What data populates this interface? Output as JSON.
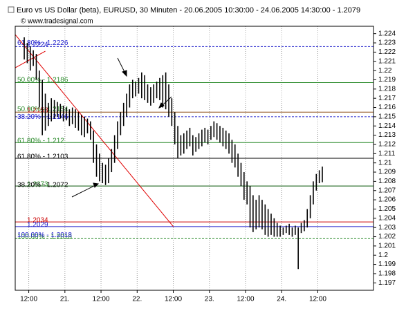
{
  "chart_data": {
    "type": "range-bar",
    "title": "Euro vs US Dollar (beta), EURUSD, 30 Minuten - 20.06.2005 10:30:00 - 24.06.2005 14:30:00 - 1.2079",
    "watermark": "© www.tradesignal.com",
    "bar_color": "#000000",
    "x": [
      0,
      1,
      2,
      3,
      4,
      5,
      6,
      7,
      8,
      9,
      10,
      11,
      12,
      13,
      14,
      15,
      16,
      17,
      18,
      19,
      20,
      21,
      22,
      23,
      24,
      25,
      26,
      27,
      28,
      29,
      30,
      31,
      32,
      33,
      34,
      35,
      36,
      37,
      38,
      39,
      40,
      41,
      42,
      43,
      44,
      45,
      46,
      47,
      48,
      49,
      50,
      51,
      52,
      53,
      54,
      55,
      56,
      57,
      58,
      59,
      60,
      61,
      62,
      63,
      64,
      65,
      66,
      67,
      68,
      69,
      70,
      71,
      72,
      73,
      74,
      75,
      76,
      77,
      78,
      79,
      80,
      81,
      82,
      83,
      84,
      85,
      86,
      87,
      88,
      89,
      90,
      91,
      92,
      93,
      94,
      95,
      96,
      97,
      98,
      99
    ],
    "high": [
      1.2236,
      1.223,
      1.2226,
      1.2222,
      1.2218,
      1.22,
      1.219,
      1.2175,
      1.2165,
      1.217,
      1.2168,
      1.2166,
      1.2164,
      1.2162,
      1.216,
      1.2158,
      1.216,
      1.2158,
      1.2155,
      1.2152,
      1.215,
      1.2148,
      1.2145,
      1.2135,
      1.212,
      1.211,
      1.21,
      1.2098,
      1.2105,
      1.2115,
      1.213,
      1.2145,
      1.2155,
      1.2165,
      1.2175,
      1.2185,
      1.219,
      1.2188,
      1.2192,
      1.2198,
      1.2195,
      1.2185,
      1.2182,
      1.2185,
      1.2188,
      1.2192,
      1.2195,
      1.2198,
      1.2185,
      1.217,
      1.2155,
      1.214,
      1.213,
      1.2132,
      1.2135,
      1.2138,
      1.213,
      1.2128,
      1.2132,
      1.2136,
      1.2138,
      1.2136,
      1.214,
      1.2145,
      1.2143,
      1.214,
      1.2138,
      1.2135,
      1.2132,
      1.2125,
      1.212,
      1.211,
      1.21,
      1.209,
      1.208,
      1.2075,
      1.2065,
      1.206,
      1.2065,
      1.206,
      1.2055,
      1.205,
      1.2045,
      1.204,
      1.2035,
      1.2032,
      1.203,
      1.2032,
      1.2034,
      1.203,
      1.2032,
      1.203,
      1.2035,
      1.2038,
      1.205,
      1.2065,
      1.208,
      1.2088,
      1.2092,
      1.2096
    ],
    "low": [
      1.2212,
      1.2208,
      1.22,
      1.2205,
      1.219,
      1.216,
      1.213,
      1.2135,
      1.214,
      1.2145,
      1.2148,
      1.215,
      1.2148,
      1.2145,
      1.2146,
      1.214,
      1.2142,
      1.2138,
      1.2135,
      1.213,
      1.2128,
      1.2132,
      1.2125,
      1.21,
      1.2085,
      1.208,
      1.2078,
      1.2076,
      1.2078,
      1.209,
      1.21,
      1.2115,
      1.213,
      1.214,
      1.215,
      1.216,
      1.217,
      1.2172,
      1.2175,
      1.217,
      1.2168,
      1.2165,
      1.2162,
      1.2165,
      1.217,
      1.2168,
      1.216,
      1.2158,
      1.215,
      1.214,
      1.212,
      1.2105,
      1.2108,
      1.211,
      1.2115,
      1.2118,
      1.2108,
      1.2112,
      1.2115,
      1.2118,
      1.2122,
      1.212,
      1.2125,
      1.2128,
      1.2125,
      1.2122,
      1.2118,
      1.2115,
      1.211,
      1.21,
      1.2095,
      1.2085,
      1.2075,
      1.206,
      1.2055,
      1.203,
      1.2025,
      1.2028,
      1.203,
      1.2028,
      1.2022,
      1.202,
      1.2022,
      1.202,
      1.202,
      1.202,
      1.2022,
      1.2024,
      1.2022,
      1.202,
      1.2022,
      1.1985,
      1.2024,
      1.2026,
      1.203,
      1.204,
      1.2055,
      1.207,
      1.2078,
      1.2079
    ],
    "xlim": [
      -3,
      116
    ],
    "xticks": [
      {
        "value": 1.5,
        "label": "12:00"
      },
      {
        "value": 13.5,
        "label": "21."
      },
      {
        "value": 25.5,
        "label": "12:00"
      },
      {
        "value": 37.5,
        "label": "22."
      },
      {
        "value": 49.5,
        "label": "12:00"
      },
      {
        "value": 61.5,
        "label": "23."
      },
      {
        "value": 73.5,
        "label": "12:00"
      },
      {
        "value": 85.5,
        "label": "24."
      },
      {
        "value": 97.5,
        "label": "12:00"
      }
    ],
    "ylim": [
      1.1962,
      1.2248
    ],
    "yticks": [
      1.197,
      1.198,
      1.199,
      1.2,
      1.201,
      1.202,
      1.203,
      1.204,
      1.205,
      1.206,
      1.207,
      1.208,
      1.209,
      1.21,
      1.211,
      1.212,
      1.213,
      1.214,
      1.215,
      1.216,
      1.217,
      1.218,
      1.219,
      1.22,
      1.221,
      1.222,
      1.223,
      1.224
    ],
    "grid": true,
    "levels": [
      {
        "value": 1.2226,
        "color": "#2222cc",
        "dashed": true,
        "labels": [
          {
            "text": "1.2224",
            "value": 1.2224,
            "color": "#2222cc"
          },
          {
            "text": "61.80% - 1.2226",
            "value": 1.2226,
            "color": "#2222cc"
          }
        ]
      },
      {
        "value": 1.2187,
        "color": "#2a8a2a",
        "dashed": false,
        "labels": [
          {
            "text": "50.00% - 1.2186",
            "value": 1.2186,
            "color": "#2a8a2a"
          }
        ]
      },
      {
        "value": 1.2155,
        "color": "#8a4a10",
        "dashed": false,
        "labels": [
          {
            "text": "1.2153",
            "value": 1.2153,
            "color": "#cc0000"
          }
        ]
      },
      {
        "value": 1.215,
        "color": "#2222cc",
        "dashed": true,
        "labels": [
          {
            "text": "50.00% - 1.2154",
            "value": 1.2154,
            "color": "#2a8a2a"
          },
          {
            "text": "38.20% - 1.2146",
            "value": 1.2146,
            "color": "#2222cc"
          }
        ]
      },
      {
        "value": 1.2122,
        "color": "#2a8a2a",
        "dashed": false,
        "labels": [
          {
            "text": "61.80% - 1.212",
            "value": 1.212,
            "color": "#2a8a2a"
          }
        ]
      },
      {
        "value": 1.2105,
        "color": "#000000",
        "dashed": false,
        "labels": [
          {
            "text": "61.80% - 1.2103",
            "value": 1.2103,
            "color": "#000000"
          }
        ]
      },
      {
        "value": 1.2075,
        "color": "#005000",
        "dashed": false,
        "labels": [
          {
            "text": "1.2073",
            "value": 1.2073,
            "color": "#2a8a2a"
          },
          {
            "text": "38.20% - 1.2072",
            "value": 1.2072,
            "color": "#000000"
          }
        ]
      },
      {
        "value": 1.2036,
        "color": "#cc0000",
        "dashed": false,
        "labels": [
          {
            "text": "1.2034",
            "value": 1.2034,
            "color": "#cc0000"
          }
        ]
      },
      {
        "value": 1.2031,
        "color": "#2222cc",
        "dashed": false,
        "labels": [
          {
            "text": "1.2029",
            "value": 1.2029,
            "color": "#2222cc"
          }
        ]
      },
      {
        "value": 1.2018,
        "color": "#2a8a2a",
        "dashed": true,
        "labels": [
          {
            "text": "100.00% - 1.2016",
            "value": 1.2016,
            "color": "#2a8a2a"
          },
          {
            "text": "100.00% - 1.2018",
            "value": 1.2018,
            "color": "#2222cc"
          }
        ]
      }
    ],
    "trendlines": [
      {
        "x": [
          -3,
          49.5
        ],
        "y": [
          1.2239,
          1.2031
        ],
        "color": "#e00000"
      },
      {
        "x": [
          -3,
          7
        ],
        "y": [
          1.2203,
          1.2221
        ],
        "color": "#e00000"
      }
    ]
  }
}
